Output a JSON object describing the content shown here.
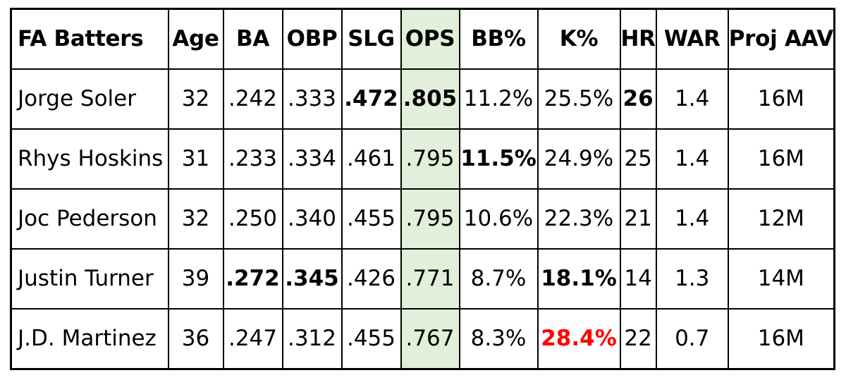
{
  "chart_data": {
    "type": "table",
    "columns": [
      "FA Batters",
      "Age",
      "BA",
      "OBP",
      "SLG",
      "OPS",
      "BB%",
      "K%",
      "HR",
      "WAR",
      "Proj AAV"
    ],
    "rows": [
      [
        "Jorge Soler",
        "32",
        ".242",
        ".333",
        ".472",
        ".805",
        "11.2%",
        "25.5%",
        "26",
        "1.4",
        "16M"
      ],
      [
        "Rhys Hoskins",
        "31",
        ".233",
        ".334",
        ".461",
        ".795",
        "11.5%",
        "24.9%",
        "25",
        "1.4",
        "16M"
      ],
      [
        "Joc Pederson",
        "32",
        ".250",
        ".340",
        ".455",
        ".795",
        "10.6%",
        "22.3%",
        "21",
        "1.4",
        "12M"
      ],
      [
        "Justin Turner",
        "39",
        ".272",
        ".345",
        ".426",
        ".771",
        "8.7%",
        "18.1%",
        "14",
        "1.3",
        "14M"
      ],
      [
        "J.D. Martinez",
        "36",
        ".247",
        ".312",
        ".455",
        ".767",
        "8.3%",
        "28.4%",
        "22",
        "0.7",
        "16M"
      ]
    ],
    "bold_cells": [
      [
        0,
        4
      ],
      [
        0,
        5
      ],
      [
        0,
        8
      ],
      [
        1,
        6
      ],
      [
        3,
        2
      ],
      [
        3,
        3
      ],
      [
        3,
        7
      ],
      [
        4,
        7
      ]
    ],
    "red_cells": [
      [
        4,
        7
      ]
    ],
    "highlight_column": 5,
    "highlight_color": "#e2efda",
    "emphasis_color": "#ff0000"
  }
}
